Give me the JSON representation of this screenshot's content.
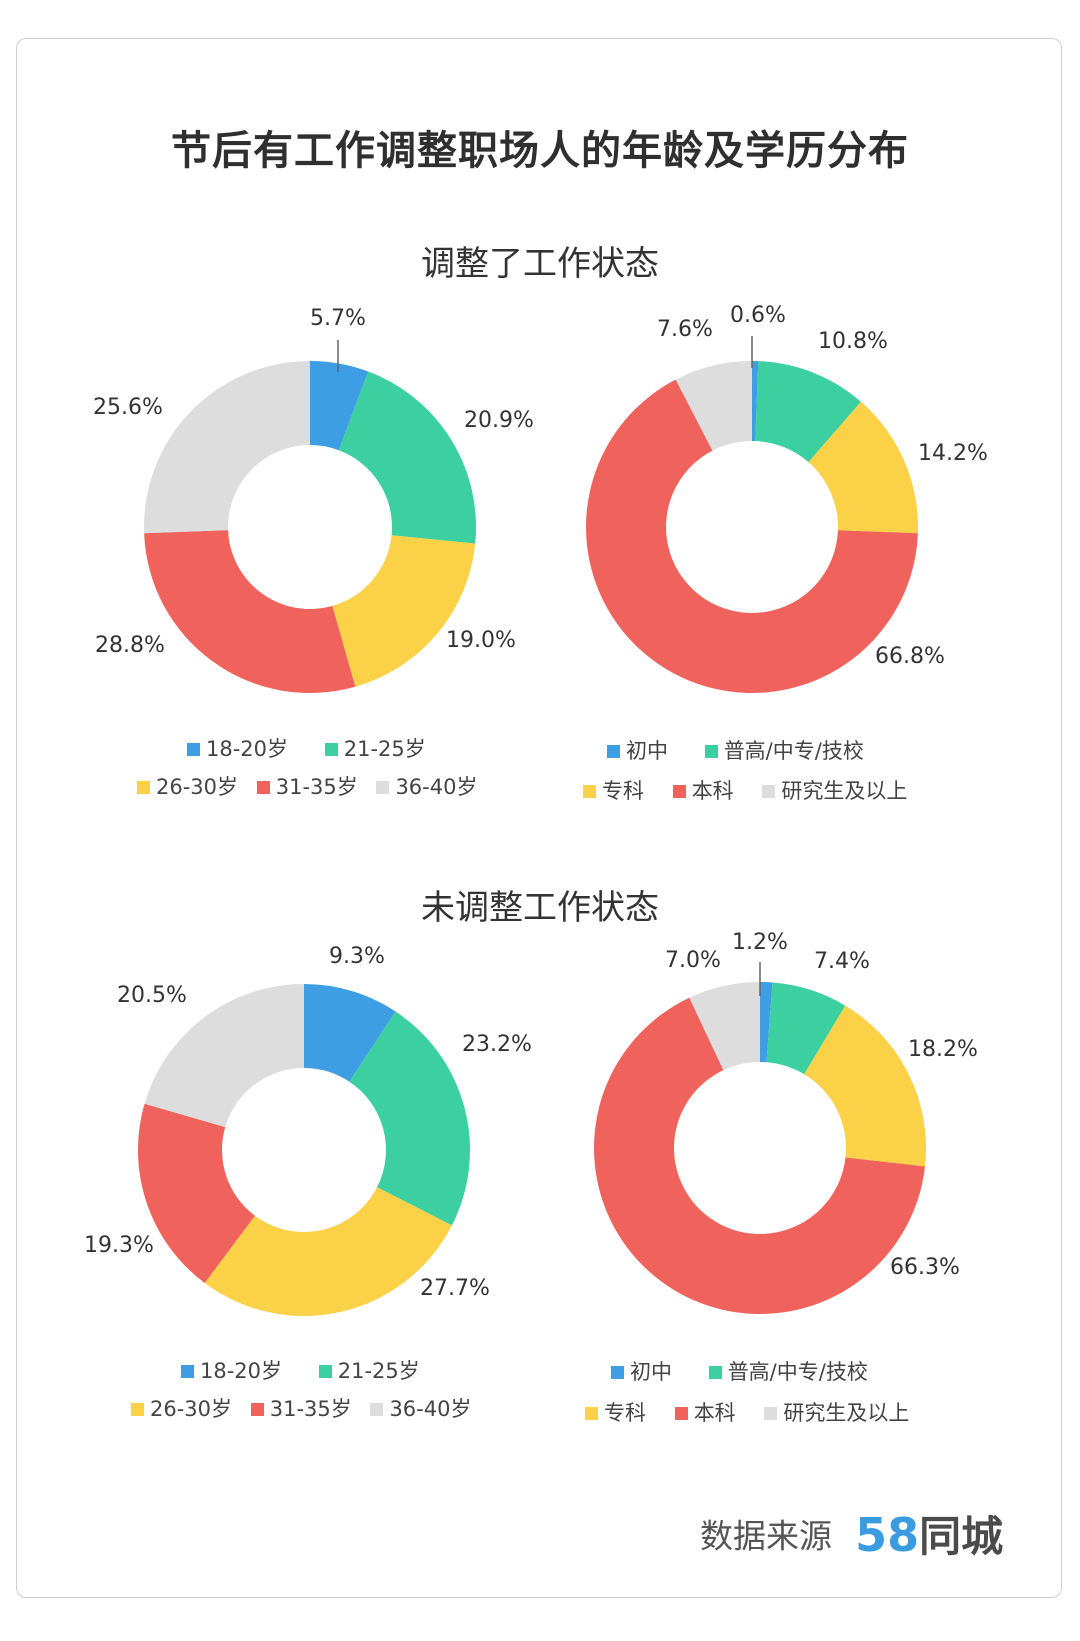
{
  "title": "节后有工作调整职场人的年龄及学历分布",
  "colors": {
    "blue": "#3e9ee3",
    "teal": "#3ccf9f",
    "yellow": "#fbd148",
    "red": "#f0635c",
    "gray": "#dddddd"
  },
  "sections": [
    {
      "title": "调整了工作状态",
      "age": {
        "categories": [
          "18-20岁",
          "21-25岁",
          "26-30岁",
          "31-35岁",
          "36-40岁"
        ],
        "values": [
          5.7,
          20.9,
          19.0,
          28.8,
          25.6
        ],
        "labels": [
          "5.7%",
          "20.9%",
          "19.0%",
          "28.8%",
          "25.6%"
        ]
      },
      "edu": {
        "categories": [
          "初中",
          "普高/中专/技校",
          "专科",
          "本科",
          "研究生及以上"
        ],
        "values": [
          0.6,
          10.8,
          14.2,
          66.8,
          7.6
        ],
        "labels": [
          "0.6%",
          "10.8%",
          "14.2%",
          "66.8%",
          "7.6%"
        ]
      }
    },
    {
      "title": "未调整工作状态",
      "age": {
        "categories": [
          "18-20岁",
          "21-25岁",
          "26-30岁",
          "31-35岁",
          "36-40岁"
        ],
        "values": [
          9.3,
          23.2,
          27.7,
          19.3,
          20.5
        ],
        "labels": [
          "9.3%",
          "23.2%",
          "27.7%",
          "19.3%",
          "20.5%"
        ]
      },
      "edu": {
        "categories": [
          "初中",
          "普高/中专/技校",
          "专科",
          "本科",
          "研究生及以上"
        ],
        "values": [
          1.2,
          7.4,
          18.2,
          66.3,
          7.0
        ],
        "labels": [
          "1.2%",
          "7.4%",
          "18.2%",
          "66.3%",
          "7.0%"
        ]
      }
    }
  ],
  "chart_data": [
    {
      "type": "pie",
      "title": "调整了工作状态",
      "categories": [
        "18-20岁",
        "21-25岁",
        "26-30岁",
        "31-35岁",
        "36-40岁"
      ],
      "values": [
        5.7,
        20.9,
        19.0,
        28.8,
        25.6
      ]
    },
    {
      "type": "pie",
      "title": "调整了工作状态",
      "categories": [
        "初中",
        "普高/中专/技校",
        "专科",
        "本科",
        "研究生及以上"
      ],
      "values": [
        0.6,
        10.8,
        14.2,
        66.8,
        7.6
      ]
    },
    {
      "type": "pie",
      "title": "未调整工作状态",
      "categories": [
        "18-20岁",
        "21-25岁",
        "26-30岁",
        "31-35岁",
        "36-40岁"
      ],
      "values": [
        9.3,
        23.2,
        27.7,
        19.3,
        20.5
      ]
    },
    {
      "type": "pie",
      "title": "未调整工作状态",
      "categories": [
        "初中",
        "普高/中专/技校",
        "专科",
        "本科",
        "研究生及以上"
      ],
      "values": [
        1.2,
        7.4,
        18.2,
        66.3,
        7.0
      ]
    }
  ],
  "footer": {
    "source_label": "数据来源",
    "logo_number": "58",
    "logo_name": "同城"
  }
}
